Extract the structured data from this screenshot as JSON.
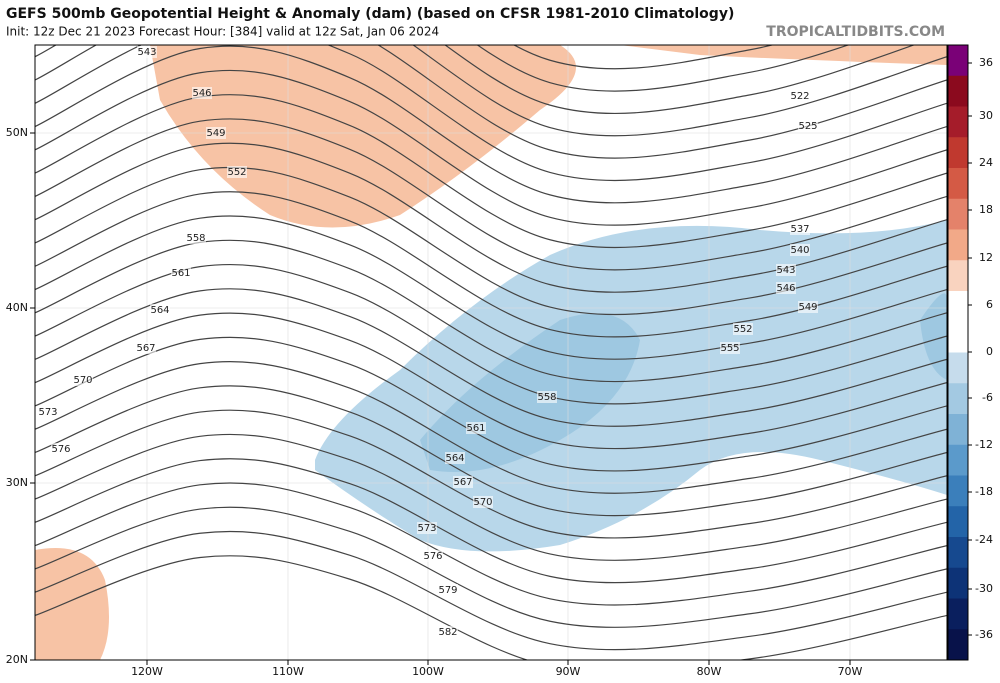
{
  "header": {
    "title": "GEFS 500mb Geopotential Height & Anomaly (dam) (based on CFSR 1981-2010 Climatology)",
    "subtitle": "Init: 12z Dec 21 2023   Forecast Hour: [384]   valid at 12z Sat, Jan 06 2024",
    "brand": "TROPICALTIDBITS.COM"
  },
  "map": {
    "latitude_labels": [
      "50N",
      "40N",
      "30N",
      "20N"
    ],
    "longitude_labels": [
      "120W",
      "110W",
      "100W",
      "90W",
      "80W",
      "70W"
    ],
    "contour_labels": [
      "543",
      "546",
      "549",
      "552",
      "558",
      "561",
      "564",
      "567",
      "570",
      "573",
      "576",
      "522",
      "525",
      "537",
      "540",
      "543",
      "546",
      "549",
      "552",
      "555",
      "558",
      "561",
      "564",
      "567",
      "570",
      "573",
      "576",
      "579",
      "582"
    ]
  },
  "colorbar": {
    "ticks": [
      "36",
      "30",
      "24",
      "18",
      "12",
      "6",
      "0",
      "-6",
      "-12",
      "-18",
      "-24",
      "-30",
      "-36"
    ]
  }
}
